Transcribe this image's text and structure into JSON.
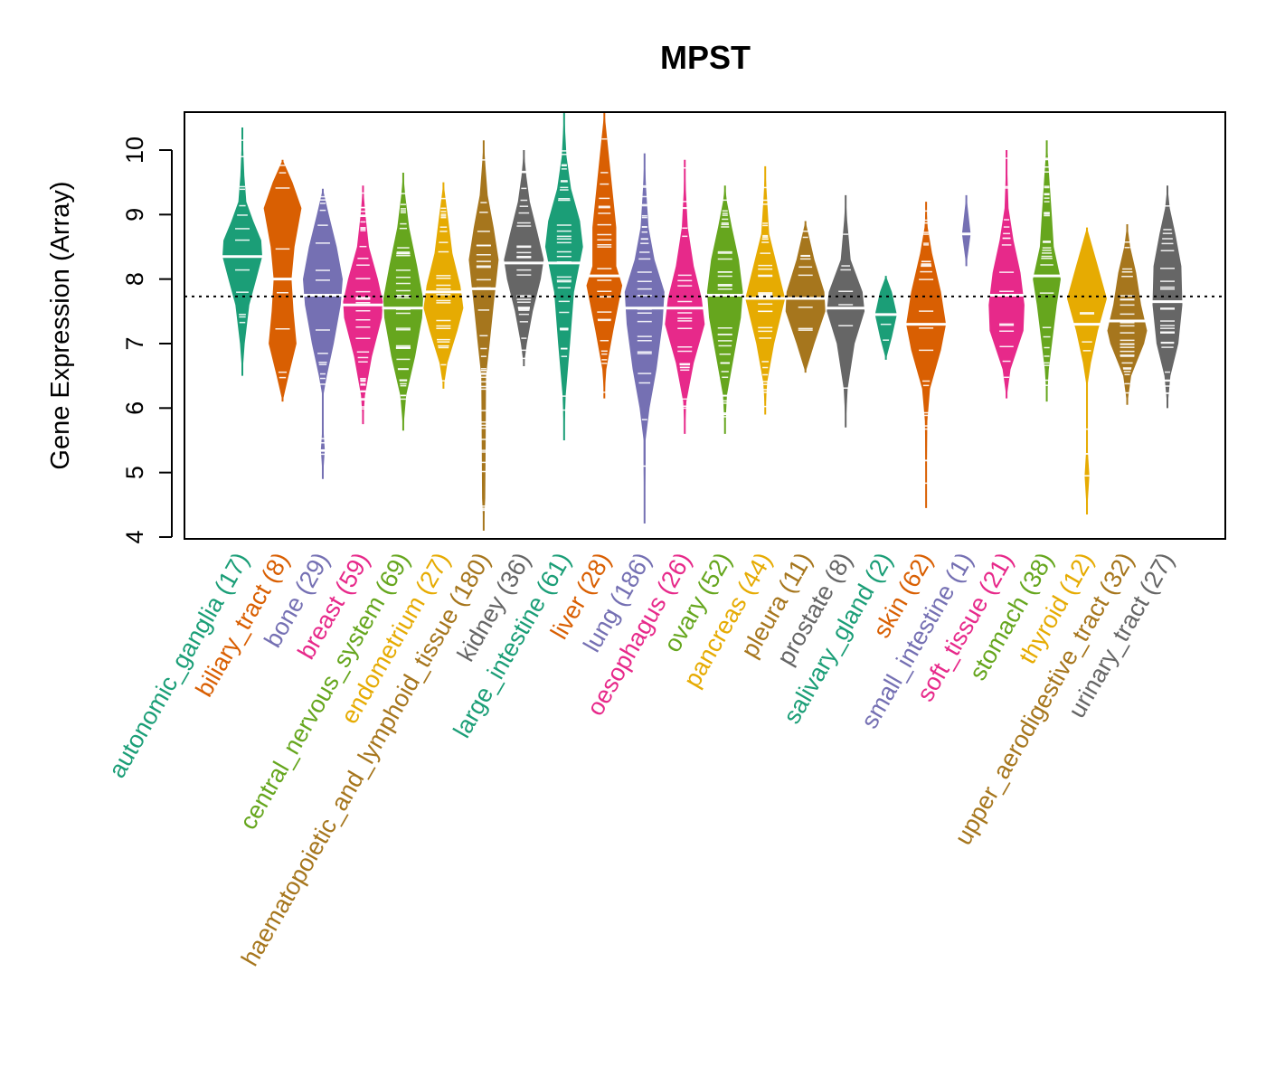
{
  "chart_data": {
    "type": "violin",
    "title": "MPST",
    "xlabel": "",
    "ylabel": "Gene Expression (Array)",
    "ylim": [
      3.95,
      10.6
    ],
    "yticks": [
      4,
      5,
      6,
      7,
      8,
      9,
      10
    ],
    "reference_line": {
      "value": 7.73,
      "style": "dotted",
      "color": "#000000"
    },
    "grid": false,
    "legend": "none",
    "categories": [
      {
        "name": "autonomic_ganglia",
        "n": 17,
        "color": "#1B9E77",
        "min": 6.5,
        "max": 10.35,
        "median": 8.35,
        "profile": [
          [
            6.5,
            0
          ],
          [
            7.0,
            0.12
          ],
          [
            7.6,
            0.35
          ],
          [
            8.0,
            0.7
          ],
          [
            8.35,
            1.0
          ],
          [
            8.6,
            0.95
          ],
          [
            8.9,
            0.55
          ],
          [
            9.2,
            0.2
          ],
          [
            9.6,
            0.1
          ],
          [
            10.35,
            0
          ]
        ]
      },
      {
        "name": "biliary_tract",
        "n": 8,
        "color": "#D95F02",
        "min": 6.1,
        "max": 9.85,
        "median": 8.0,
        "profile": [
          [
            6.1,
            0
          ],
          [
            6.5,
            0.3
          ],
          [
            7.0,
            0.7
          ],
          [
            7.5,
            0.55
          ],
          [
            8.0,
            0.45
          ],
          [
            8.5,
            0.6
          ],
          [
            9.1,
            0.95
          ],
          [
            9.5,
            0.5
          ],
          [
            9.85,
            0
          ]
        ]
      },
      {
        "name": "bone",
        "n": 29,
        "color": "#7570B3",
        "min": 4.9,
        "max": 9.4,
        "median": 7.75,
        "profile": [
          [
            4.9,
            0
          ],
          [
            5.35,
            0.1
          ],
          [
            5.8,
            0
          ],
          [
            6.15,
            0
          ],
          [
            6.5,
            0.2
          ],
          [
            7.0,
            0.55
          ],
          [
            7.6,
            0.9
          ],
          [
            8.0,
            1.0
          ],
          [
            8.5,
            0.7
          ],
          [
            9.0,
            0.3
          ],
          [
            9.4,
            0
          ]
        ],
        "outliers": [
          5.35
        ]
      },
      {
        "name": "breast",
        "n": 59,
        "color": "#E7298A",
        "min": 5.75,
        "max": 9.45,
        "median": 7.6,
        "profile": [
          [
            5.75,
            0
          ],
          [
            6.2,
            0.1
          ],
          [
            6.8,
            0.45
          ],
          [
            7.4,
            0.95
          ],
          [
            7.65,
            1.0
          ],
          [
            8.0,
            0.75
          ],
          [
            8.5,
            0.3
          ],
          [
            9.0,
            0.12
          ],
          [
            9.45,
            0
          ]
        ]
      },
      {
        "name": "central_nervous_system",
        "n": 69,
        "color": "#66A61E",
        "min": 5.65,
        "max": 9.65,
        "median": 7.55,
        "profile": [
          [
            5.65,
            0
          ],
          [
            6.2,
            0.15
          ],
          [
            6.8,
            0.6
          ],
          [
            7.4,
            0.95
          ],
          [
            7.7,
            1.0
          ],
          [
            8.2,
            0.7
          ],
          [
            8.8,
            0.3
          ],
          [
            9.3,
            0.1
          ],
          [
            9.65,
            0
          ]
        ]
      },
      {
        "name": "endometrium",
        "n": 27,
        "color": "#E6AB02",
        "min": 6.3,
        "max": 9.5,
        "median": 7.8,
        "profile": [
          [
            6.3,
            0
          ],
          [
            6.7,
            0.2
          ],
          [
            7.2,
            0.7
          ],
          [
            7.55,
            1.0
          ],
          [
            7.9,
            0.85
          ],
          [
            8.4,
            0.45
          ],
          [
            8.9,
            0.25
          ],
          [
            9.5,
            0
          ]
        ]
      },
      {
        "name": "haematopoietic_and_lymphoid_tissue",
        "n": 180,
        "color": "#A6761D",
        "min": 4.1,
        "max": 10.15,
        "median": 7.85,
        "profile": [
          [
            4.1,
            0
          ],
          [
            4.6,
            0.08
          ],
          [
            5.5,
            0.1
          ],
          [
            6.5,
            0.12
          ],
          [
            7.0,
            0.3
          ],
          [
            7.6,
            0.5
          ],
          [
            8.3,
            0.75
          ],
          [
            8.8,
            0.5
          ],
          [
            9.3,
            0.2
          ],
          [
            9.7,
            0.1
          ],
          [
            10.15,
            0
          ]
        ]
      },
      {
        "name": "kidney",
        "n": 36,
        "color": "#666666",
        "min": 6.65,
        "max": 10.0,
        "median": 8.25,
        "profile": [
          [
            6.65,
            0
          ],
          [
            7.0,
            0.15
          ],
          [
            7.5,
            0.45
          ],
          [
            8.0,
            0.85
          ],
          [
            8.3,
            1.0
          ],
          [
            8.7,
            0.7
          ],
          [
            9.2,
            0.3
          ],
          [
            9.6,
            0.12
          ],
          [
            10.0,
            0
          ]
        ]
      },
      {
        "name": "large_intestine",
        "n": 61,
        "color": "#1B9E77",
        "min": 5.5,
        "max": 10.6,
        "median": 8.25,
        "profile": [
          [
            5.5,
            0
          ],
          [
            6.2,
            0.08
          ],
          [
            7.0,
            0.3
          ],
          [
            7.8,
            0.5
          ],
          [
            8.5,
            0.95
          ],
          [
            8.9,
            0.8
          ],
          [
            9.4,
            0.35
          ],
          [
            9.9,
            0.12
          ],
          [
            10.6,
            0
          ]
        ]
      },
      {
        "name": "liver",
        "n": 28,
        "color": "#D95F02",
        "min": 6.15,
        "max": 10.6,
        "median": 8.05,
        "profile": [
          [
            6.15,
            0
          ],
          [
            6.6,
            0.1
          ],
          [
            7.2,
            0.45
          ],
          [
            7.9,
            0.9
          ],
          [
            8.2,
            0.6
          ],
          [
            8.8,
            0.6
          ],
          [
            9.4,
            0.4
          ],
          [
            10.0,
            0.2
          ],
          [
            10.6,
            0
          ]
        ]
      },
      {
        "name": "lung",
        "n": 186,
        "color": "#7570B3",
        "min": 4.2,
        "max": 9.95,
        "median": 7.55,
        "profile": [
          [
            4.2,
            0
          ],
          [
            5.1,
            0.05
          ],
          [
            5.5,
            0.05
          ],
          [
            6.0,
            0.25
          ],
          [
            6.6,
            0.6
          ],
          [
            7.3,
            0.9
          ],
          [
            7.8,
            1.0
          ],
          [
            8.3,
            0.5
          ],
          [
            8.8,
            0.2
          ],
          [
            9.4,
            0.08
          ],
          [
            9.95,
            0
          ]
        ],
        "outliers": [
          4.2,
          5.1
        ]
      },
      {
        "name": "oesophagus",
        "n": 26,
        "color": "#E7298A",
        "min": 5.6,
        "max": 9.85,
        "median": 7.55,
        "profile": [
          [
            5.6,
            0
          ],
          [
            6.1,
            0.08
          ],
          [
            6.7,
            0.45
          ],
          [
            7.3,
            1.0
          ],
          [
            7.7,
            0.85
          ],
          [
            8.2,
            0.45
          ],
          [
            8.8,
            0.15
          ],
          [
            9.4,
            0.05
          ],
          [
            9.85,
            0
          ]
        ]
      },
      {
        "name": "ovary",
        "n": 52,
        "color": "#66A61E",
        "min": 5.6,
        "max": 9.45,
        "median": 7.75,
        "profile": [
          [
            5.6,
            0
          ],
          [
            6.2,
            0.1
          ],
          [
            6.8,
            0.45
          ],
          [
            7.4,
            0.8
          ],
          [
            7.8,
            0.9
          ],
          [
            8.3,
            0.7
          ],
          [
            8.8,
            0.35
          ],
          [
            9.2,
            0.1
          ],
          [
            9.45,
            0
          ]
        ]
      },
      {
        "name": "pancreas",
        "n": 44,
        "color": "#E6AB02",
        "min": 5.9,
        "max": 9.75,
        "median": 7.7,
        "profile": [
          [
            5.9,
            0
          ],
          [
            6.4,
            0.1
          ],
          [
            7.0,
            0.45
          ],
          [
            7.7,
            1.0
          ],
          [
            8.2,
            0.6
          ],
          [
            8.7,
            0.2
          ],
          [
            9.3,
            0.08
          ],
          [
            9.75,
            0
          ]
        ]
      },
      {
        "name": "pleura",
        "n": 11,
        "color": "#A6761D",
        "min": 6.55,
        "max": 8.9,
        "median": 7.7,
        "profile": [
          [
            6.55,
            0
          ],
          [
            7.0,
            0.45
          ],
          [
            7.5,
            1.0
          ],
          [
            7.8,
            0.95
          ],
          [
            8.3,
            0.45
          ],
          [
            8.9,
            0
          ]
        ]
      },
      {
        "name": "prostate",
        "n": 8,
        "color": "#666666",
        "min": 5.7,
        "max": 9.3,
        "median": 7.55,
        "profile": [
          [
            5.7,
            0
          ],
          [
            6.3,
            0.1
          ],
          [
            7.0,
            0.45
          ],
          [
            7.5,
            0.95
          ],
          [
            7.8,
            0.85
          ],
          [
            8.3,
            0.25
          ],
          [
            8.9,
            0.08
          ],
          [
            9.3,
            0
          ]
        ]
      },
      {
        "name": "salivary_gland",
        "n": 2,
        "color": "#1B9E77",
        "min": 6.75,
        "max": 8.05,
        "median": 7.45,
        "profile": [
          [
            6.75,
            0
          ],
          [
            7.1,
            0.3
          ],
          [
            7.45,
            0.55
          ],
          [
            7.8,
            0.3
          ],
          [
            8.05,
            0
          ]
        ]
      },
      {
        "name": "skin",
        "n": 62,
        "color": "#D95F02",
        "min": 4.45,
        "max": 9.2,
        "median": 7.3,
        "profile": [
          [
            4.45,
            0
          ],
          [
            5.0,
            0.03
          ],
          [
            5.8,
            0.06
          ],
          [
            6.3,
            0.2
          ],
          [
            6.9,
            0.75
          ],
          [
            7.3,
            1.0
          ],
          [
            7.8,
            0.75
          ],
          [
            8.4,
            0.3
          ],
          [
            8.8,
            0.08
          ],
          [
            9.2,
            0
          ]
        ]
      },
      {
        "name": "small_intestine",
        "n": 1,
        "color": "#7570B3",
        "min": 8.2,
        "max": 9.3,
        "median": 8.7,
        "profile": [
          [
            8.2,
            0
          ],
          [
            8.7,
            0.22
          ],
          [
            9.3,
            0
          ]
        ]
      },
      {
        "name": "soft_tissue",
        "n": 21,
        "color": "#E7298A",
        "min": 6.15,
        "max": 10.0,
        "median": 7.75,
        "profile": [
          [
            6.15,
            0
          ],
          [
            6.6,
            0.2
          ],
          [
            7.2,
            0.85
          ],
          [
            7.6,
            0.9
          ],
          [
            8.1,
            0.7
          ],
          [
            8.6,
            0.35
          ],
          [
            9.1,
            0.1
          ],
          [
            10.0,
            0
          ]
        ]
      },
      {
        "name": "stomach",
        "n": 38,
        "color": "#66A61E",
        "min": 6.1,
        "max": 10.15,
        "median": 8.05,
        "profile": [
          [
            6.1,
            0
          ],
          [
            6.6,
            0.1
          ],
          [
            7.1,
            0.3
          ],
          [
            7.6,
            0.5
          ],
          [
            8.0,
            0.7
          ],
          [
            8.5,
            0.35
          ],
          [
            9.0,
            0.25
          ],
          [
            9.6,
            0.12
          ],
          [
            10.15,
            0
          ]
        ]
      },
      {
        "name": "thyroid",
        "n": 12,
        "color": "#E6AB02",
        "min": 4.35,
        "max": 8.8,
        "median": 7.3,
        "profile": [
          [
            4.35,
            0
          ],
          [
            4.95,
            0.12
          ],
          [
            5.55,
            0
          ],
          [
            6.3,
            0
          ],
          [
            6.7,
            0.2
          ],
          [
            7.2,
            0.55
          ],
          [
            7.7,
            1.0
          ],
          [
            8.2,
            0.55
          ],
          [
            8.8,
            0
          ]
        ],
        "outliers": [
          4.95
        ]
      },
      {
        "name": "upper_aerodigestive_tract",
        "n": 32,
        "color": "#A6761D",
        "min": 6.05,
        "max": 8.85,
        "median": 7.35,
        "profile": [
          [
            6.05,
            0
          ],
          [
            6.5,
            0.2
          ],
          [
            7.0,
            0.85
          ],
          [
            7.2,
            1.0
          ],
          [
            7.6,
            0.7
          ],
          [
            8.1,
            0.45
          ],
          [
            8.5,
            0.15
          ],
          [
            8.85,
            0
          ]
        ]
      },
      {
        "name": "urinary_tract",
        "n": 27,
        "color": "#666666",
        "min": 6.0,
        "max": 9.45,
        "median": 7.65,
        "profile": [
          [
            6.0,
            0
          ],
          [
            6.5,
            0.15
          ],
          [
            7.0,
            0.55
          ],
          [
            7.6,
            0.75
          ],
          [
            8.2,
            0.7
          ],
          [
            8.7,
            0.4
          ],
          [
            9.1,
            0.12
          ],
          [
            9.45,
            0
          ]
        ]
      }
    ]
  }
}
